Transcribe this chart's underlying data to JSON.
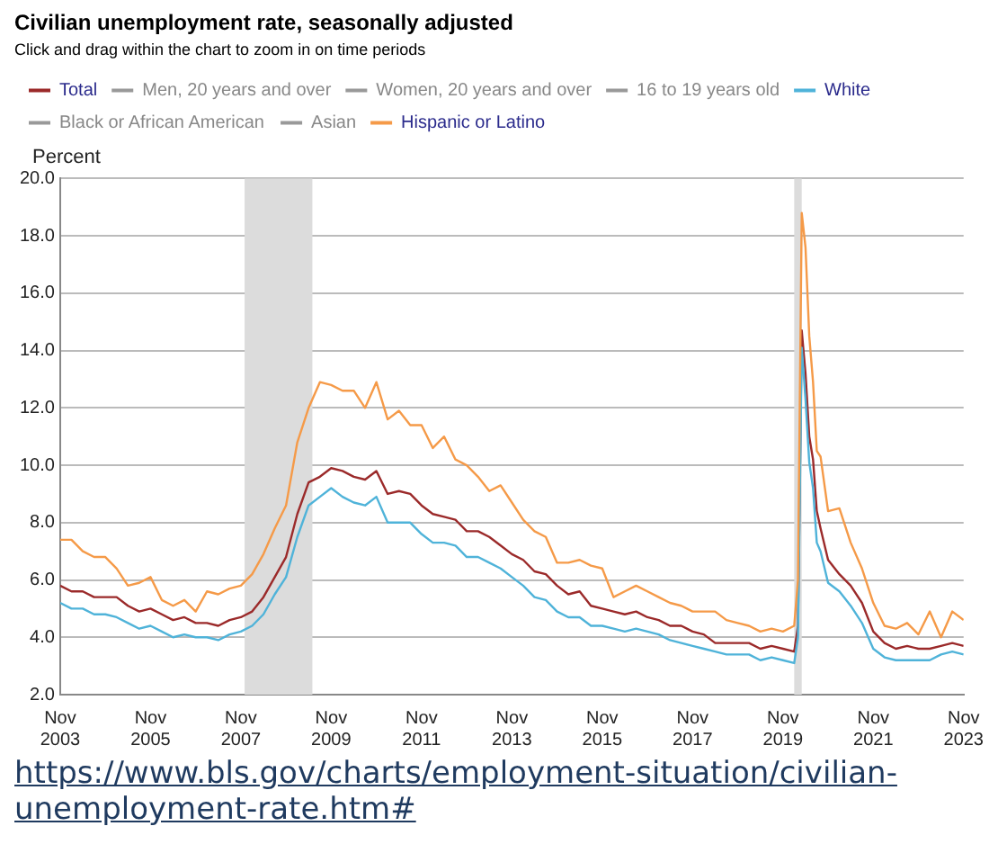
{
  "chart_data": {
    "type": "line",
    "title": "Civilian unemployment rate, seasonally adjusted",
    "subtitle": "Click and drag within the chart to zoom in on time periods",
    "ylabel": "Percent",
    "annotations": [
      "https://www.bls.gov/charts/employment-situation/civilian-unemployment-rate.htm#"
    ],
    "x": [
      "2003-11",
      "2004-02",
      "2004-05",
      "2004-08",
      "2004-11",
      "2005-02",
      "2005-05",
      "2005-08",
      "2005-11",
      "2006-02",
      "2006-05",
      "2006-08",
      "2006-11",
      "2007-02",
      "2007-05",
      "2007-08",
      "2007-11",
      "2008-02",
      "2008-05",
      "2008-08",
      "2008-11",
      "2009-02",
      "2009-05",
      "2009-08",
      "2009-11",
      "2010-02",
      "2010-05",
      "2010-08",
      "2010-11",
      "2011-02",
      "2011-05",
      "2011-08",
      "2011-11",
      "2012-02",
      "2012-05",
      "2012-08",
      "2012-11",
      "2013-02",
      "2013-05",
      "2013-08",
      "2013-11",
      "2014-02",
      "2014-05",
      "2014-08",
      "2014-11",
      "2015-02",
      "2015-05",
      "2015-08",
      "2015-11",
      "2016-02",
      "2016-05",
      "2016-08",
      "2016-11",
      "2017-02",
      "2017-05",
      "2017-08",
      "2017-11",
      "2018-02",
      "2018-05",
      "2018-08",
      "2018-11",
      "2019-02",
      "2019-05",
      "2019-08",
      "2019-11",
      "2020-02",
      "2020-03",
      "2020-04",
      "2020-05",
      "2020-06",
      "2020-07",
      "2020-08",
      "2020-09",
      "2020-11",
      "2021-02",
      "2021-05",
      "2021-08",
      "2021-11",
      "2022-02",
      "2022-05",
      "2022-08",
      "2022-11",
      "2023-02",
      "2023-05",
      "2023-08",
      "2023-11"
    ],
    "series": [
      {
        "name": "Total",
        "color": "#9b2a2a",
        "values": [
          5.8,
          5.6,
          5.6,
          5.4,
          5.4,
          5.4,
          5.1,
          4.9,
          5.0,
          4.8,
          4.6,
          4.7,
          4.5,
          4.5,
          4.4,
          4.6,
          4.7,
          4.9,
          5.4,
          6.1,
          6.8,
          8.3,
          9.4,
          9.6,
          9.9,
          9.8,
          9.6,
          9.5,
          9.8,
          9.0,
          9.1,
          9.0,
          8.6,
          8.3,
          8.2,
          8.1,
          7.7,
          7.7,
          7.5,
          7.2,
          6.9,
          6.7,
          6.3,
          6.2,
          5.8,
          5.5,
          5.6,
          5.1,
          5.0,
          4.9,
          4.8,
          4.9,
          4.7,
          4.6,
          4.4,
          4.4,
          4.2,
          4.1,
          3.8,
          3.8,
          3.8,
          3.8,
          3.6,
          3.7,
          3.6,
          3.5,
          4.4,
          14.7,
          13.2,
          11.0,
          10.2,
          8.4,
          7.8,
          6.7,
          6.2,
          5.8,
          5.2,
          4.2,
          3.8,
          3.6,
          3.7,
          3.6,
          3.6,
          3.7,
          3.8,
          3.7
        ]
      },
      {
        "name": "Men, 20 years and over",
        "color": "#999999",
        "values": [
          null,
          null,
          null,
          null,
          null,
          null,
          null,
          null,
          null,
          null,
          null,
          null,
          null,
          null,
          null,
          null,
          null,
          null,
          null,
          null,
          null,
          null,
          null,
          null,
          null,
          null,
          null,
          null,
          null,
          null,
          null,
          null,
          null,
          null,
          null,
          null,
          null,
          null,
          null,
          null,
          null,
          null,
          null,
          null,
          null,
          null,
          null,
          null,
          null,
          null,
          null,
          null,
          null,
          null,
          null,
          null,
          null,
          null,
          null,
          null,
          null,
          null,
          null,
          null,
          null,
          null,
          null,
          null,
          null,
          null,
          null,
          null,
          null,
          null,
          null,
          null,
          null,
          null,
          null,
          null,
          null,
          null,
          null,
          null,
          null,
          null
        ]
      },
      {
        "name": "Women, 20 years and over",
        "color": "#999999",
        "values": [
          null,
          null,
          null,
          null,
          null,
          null,
          null,
          null,
          null,
          null,
          null,
          null,
          null,
          null,
          null,
          null,
          null,
          null,
          null,
          null,
          null,
          null,
          null,
          null,
          null,
          null,
          null,
          null,
          null,
          null,
          null,
          null,
          null,
          null,
          null,
          null,
          null,
          null,
          null,
          null,
          null,
          null,
          null,
          null,
          null,
          null,
          null,
          null,
          null,
          null,
          null,
          null,
          null,
          null,
          null,
          null,
          null,
          null,
          null,
          null,
          null,
          null,
          null,
          null,
          null,
          null,
          null,
          null,
          null,
          null,
          null,
          null,
          null,
          null,
          null,
          null,
          null,
          null,
          null,
          null,
          null,
          null,
          null,
          null,
          null,
          null
        ]
      },
      {
        "name": "16 to 19 years old",
        "color": "#999999",
        "values": [
          null,
          null,
          null,
          null,
          null,
          null,
          null,
          null,
          null,
          null,
          null,
          null,
          null,
          null,
          null,
          null,
          null,
          null,
          null,
          null,
          null,
          null,
          null,
          null,
          null,
          null,
          null,
          null,
          null,
          null,
          null,
          null,
          null,
          null,
          null,
          null,
          null,
          null,
          null,
          null,
          null,
          null,
          null,
          null,
          null,
          null,
          null,
          null,
          null,
          null,
          null,
          null,
          null,
          null,
          null,
          null,
          null,
          null,
          null,
          null,
          null,
          null,
          null,
          null,
          null,
          null,
          null,
          null,
          null,
          null,
          null,
          null,
          null,
          null,
          null,
          null,
          null,
          null,
          null,
          null,
          null,
          null,
          null,
          null,
          null,
          null
        ]
      },
      {
        "name": "White",
        "color": "#4fb3d9",
        "values": [
          5.2,
          5.0,
          5.0,
          4.8,
          4.8,
          4.7,
          4.5,
          4.3,
          4.4,
          4.2,
          4.0,
          4.1,
          4.0,
          4.0,
          3.9,
          4.1,
          4.2,
          4.4,
          4.8,
          5.5,
          6.1,
          7.5,
          8.6,
          8.9,
          9.2,
          8.9,
          8.7,
          8.6,
          8.9,
          8.0,
          8.0,
          8.0,
          7.6,
          7.3,
          7.3,
          7.2,
          6.8,
          6.8,
          6.6,
          6.4,
          6.1,
          5.8,
          5.4,
          5.3,
          4.9,
          4.7,
          4.7,
          4.4,
          4.4,
          4.3,
          4.2,
          4.3,
          4.2,
          4.1,
          3.9,
          3.8,
          3.7,
          3.6,
          3.5,
          3.4,
          3.4,
          3.4,
          3.2,
          3.3,
          3.2,
          3.1,
          4.0,
          14.1,
          12.3,
          10.1,
          9.2,
          7.3,
          7.0,
          5.9,
          5.6,
          5.1,
          4.5,
          3.6,
          3.3,
          3.2,
          3.2,
          3.2,
          3.2,
          3.4,
          3.5,
          3.4
        ]
      },
      {
        "name": "Black or African American",
        "color": "#999999",
        "values": [
          null,
          null,
          null,
          null,
          null,
          null,
          null,
          null,
          null,
          null,
          null,
          null,
          null,
          null,
          null,
          null,
          null,
          null,
          null,
          null,
          null,
          null,
          null,
          null,
          null,
          null,
          null,
          null,
          null,
          null,
          null,
          null,
          null,
          null,
          null,
          null,
          null,
          null,
          null,
          null,
          null,
          null,
          null,
          null,
          null,
          null,
          null,
          null,
          null,
          null,
          null,
          null,
          null,
          null,
          null,
          null,
          null,
          null,
          null,
          null,
          null,
          null,
          null,
          null,
          null,
          null,
          null,
          null,
          null,
          null,
          null,
          null,
          null,
          null,
          null,
          null,
          null,
          null,
          null,
          null,
          null,
          null,
          null,
          null,
          null,
          null
        ]
      },
      {
        "name": "Asian",
        "color": "#999999",
        "values": [
          null,
          null,
          null,
          null,
          null,
          null,
          null,
          null,
          null,
          null,
          null,
          null,
          null,
          null,
          null,
          null,
          null,
          null,
          null,
          null,
          null,
          null,
          null,
          null,
          null,
          null,
          null,
          null,
          null,
          null,
          null,
          null,
          null,
          null,
          null,
          null,
          null,
          null,
          null,
          null,
          null,
          null,
          null,
          null,
          null,
          null,
          null,
          null,
          null,
          null,
          null,
          null,
          null,
          null,
          null,
          null,
          null,
          null,
          null,
          null,
          null,
          null,
          null,
          null,
          null,
          null,
          null,
          null,
          null,
          null,
          null,
          null,
          null,
          null,
          null,
          null,
          null,
          null,
          null,
          null,
          null,
          null,
          null,
          null,
          null,
          null
        ]
      },
      {
        "name": "Hispanic or Latino",
        "color": "#f59a48",
        "values": [
          7.4,
          7.4,
          7.0,
          6.8,
          6.8,
          6.4,
          5.8,
          5.9,
          6.1,
          5.3,
          5.1,
          5.3,
          4.9,
          5.6,
          5.5,
          5.7,
          5.8,
          6.2,
          6.9,
          7.8,
          8.6,
          10.8,
          12.0,
          12.9,
          12.8,
          12.6,
          12.6,
          12.0,
          12.9,
          11.6,
          11.9,
          11.4,
          11.4,
          10.6,
          11.0,
          10.2,
          10.0,
          9.6,
          9.1,
          9.3,
          8.7,
          8.1,
          7.7,
          7.5,
          6.6,
          6.6,
          6.7,
          6.5,
          6.4,
          5.4,
          5.6,
          5.8,
          5.6,
          5.4,
          5.2,
          5.1,
          4.9,
          4.9,
          4.9,
          4.6,
          4.5,
          4.4,
          4.2,
          4.3,
          4.2,
          4.4,
          6.0,
          18.8,
          17.6,
          14.5,
          12.9,
          10.5,
          10.3,
          8.4,
          8.5,
          7.3,
          6.4,
          5.2,
          4.4,
          4.3,
          4.5,
          4.1,
          4.9,
          4.0,
          4.9,
          4.6
        ]
      }
    ],
    "xlim": [
      "2003-11",
      "2023-11"
    ],
    "xticks": [
      {
        "value": "2003-11",
        "label": "Nov 2003"
      },
      {
        "value": "2005-11",
        "label": "Nov 2005"
      },
      {
        "value": "2007-11",
        "label": "Nov 2007"
      },
      {
        "value": "2009-11",
        "label": "Nov 2009"
      },
      {
        "value": "2011-11",
        "label": "Nov 2011"
      },
      {
        "value": "2013-11",
        "label": "Nov 2013"
      },
      {
        "value": "2015-11",
        "label": "Nov 2015"
      },
      {
        "value": "2017-11",
        "label": "Nov 2017"
      },
      {
        "value": "2019-11",
        "label": "Nov 2019"
      },
      {
        "value": "2021-11",
        "label": "Nov 2021"
      },
      {
        "value": "2023-11",
        "label": "Nov 2023"
      }
    ],
    "ylim": [
      2,
      20
    ],
    "yticks": [
      {
        "value": 2,
        "label": "2.0"
      },
      {
        "value": 4,
        "label": "4.0"
      },
      {
        "value": 6,
        "label": "6.0"
      },
      {
        "value": 8,
        "label": "8.0"
      },
      {
        "value": 10,
        "label": "10.0"
      },
      {
        "value": 12,
        "label": "12.0"
      },
      {
        "value": 14,
        "label": "14.0"
      },
      {
        "value": 16,
        "label": "16.0"
      },
      {
        "value": 18,
        "label": "18.0"
      },
      {
        "value": 20,
        "label": "20.0"
      }
    ],
    "bands": [
      {
        "axis": "x",
        "from": "2007-12",
        "to": "2009-06",
        "color": "#dcdcdc"
      },
      {
        "axis": "x",
        "from": "2020-02",
        "to": "2020-04",
        "color": "#dcdcdc"
      }
    ],
    "grid": "y",
    "legend": "top",
    "marker": "none",
    "line_style": "solid"
  }
}
